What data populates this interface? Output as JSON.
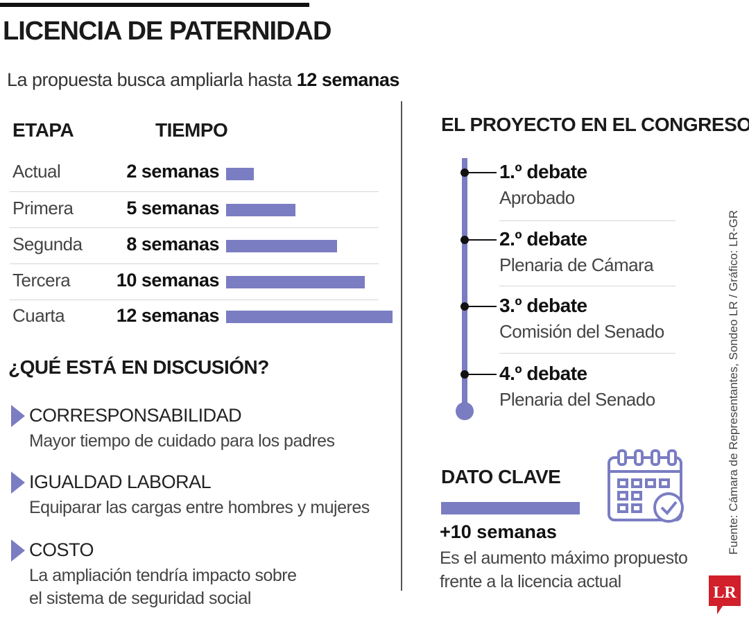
{
  "header": {
    "title": "LICENCIA DE PATERNIDAD",
    "subtitle_prefix": "La propuesta busca ampliarla hasta ",
    "subtitle_bold": "12 semanas"
  },
  "table": {
    "col_stage": "ETAPA",
    "col_time": "TIEMPO"
  },
  "chart_data": {
    "type": "bar",
    "orientation": "horizontal",
    "categories": [
      "Actual",
      "Primera",
      "Segunda",
      "Tercera",
      "Cuarta"
    ],
    "values": [
      2,
      5,
      8,
      10,
      12
    ],
    "value_labels": [
      "2 semanas",
      "5 semanas",
      "8 semanas",
      "10 semanas",
      "12 semanas"
    ],
    "unit": "semanas",
    "xlim": [
      0,
      12
    ],
    "color": "#7a7dc2",
    "grid": false
  },
  "discussion": {
    "title": "¿QUÉ ESTÁ EN DISCUSIÓN?",
    "items": [
      {
        "title": "CORRESPONSABILIDAD",
        "desc": "Mayor tiempo de cuidado para los padres"
      },
      {
        "title": "IGUALDAD LABORAL",
        "desc": "Equiparar las cargas entre hombres y mujeres"
      },
      {
        "title": "COSTO",
        "desc_line1": "La ampliación tendría impacto sobre",
        "desc_line2": "el sistema de seguridad social"
      }
    ]
  },
  "project": {
    "title": "EL PROYECTO EN EL CONGRESO",
    "debates": [
      {
        "title": "1.º debate",
        "desc": "Aprobado"
      },
      {
        "title": "2.º debate",
        "desc": "Plenaria de Cámara"
      },
      {
        "title": "3.º debate",
        "desc": "Comisión del Senado"
      },
      {
        "title": "4.º debate",
        "desc": "Plenaria del Senado"
      }
    ]
  },
  "key_fact": {
    "title": "DATO CLAVE",
    "value": "+10 semanas",
    "desc_line1": "Es el aumento máximo propuesto",
    "desc_line2": "frente a la licencia actual",
    "icon": "calendar-check-icon"
  },
  "footer": {
    "source": "Fuente: Cámara de Representantes, Sondeo LR / Gráfico: LR-GR",
    "logo_text": "LR",
    "logo_color": "#d11f2b"
  }
}
